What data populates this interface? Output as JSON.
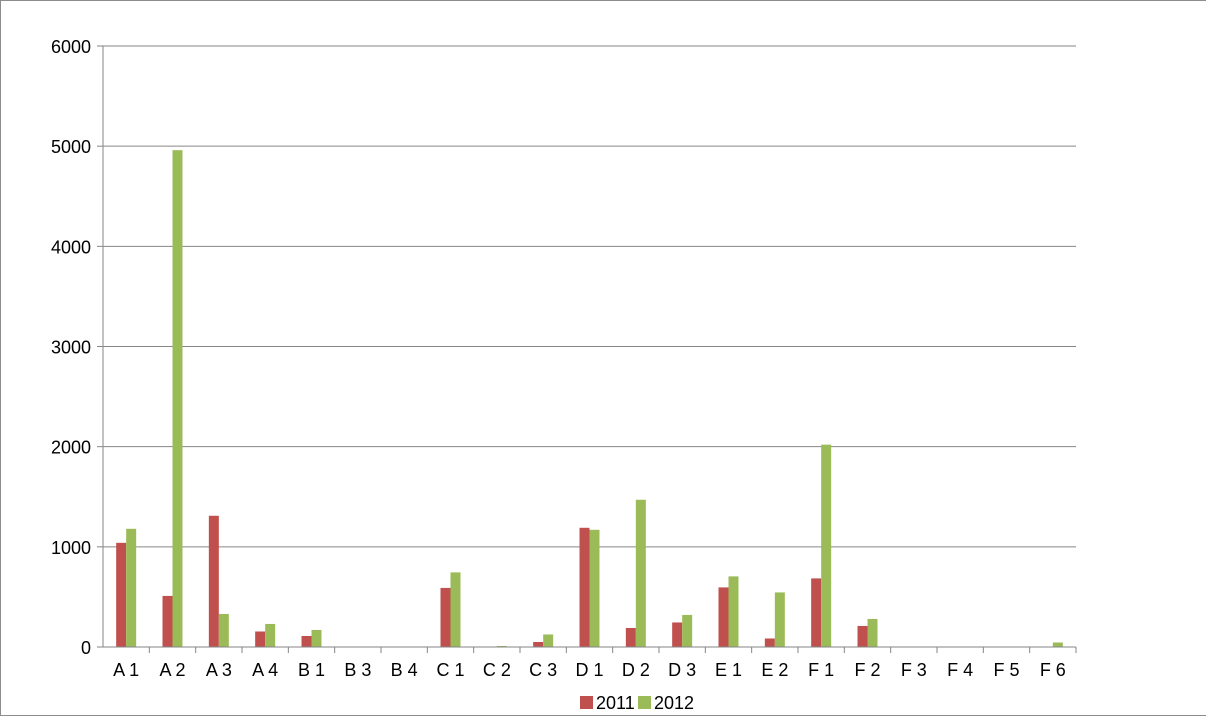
{
  "chart_data": {
    "type": "bar",
    "title": "",
    "xlabel": "",
    "ylabel": "",
    "categories": [
      "A 1",
      "A 2",
      "A 3",
      "A 4",
      "B 1",
      "B 3",
      "B 4",
      "C 1",
      "C 2",
      "C 3",
      "D 1",
      "D 2",
      "D 3",
      "E 1",
      "E 2",
      "F 1",
      "F 2",
      "F 3",
      "F 4",
      "F 5",
      "F 6"
    ],
    "series": [
      {
        "name": "2011",
        "color": "#c0504d",
        "values": [
          1040,
          510,
          1310,
          155,
          110,
          0,
          0,
          590,
          0,
          50,
          1190,
          190,
          245,
          595,
          85,
          685,
          210,
          0,
          0,
          0,
          0
        ]
      },
      {
        "name": "2012",
        "color": "#9bbb59",
        "values": [
          1180,
          4960,
          330,
          230,
          170,
          0,
          0,
          745,
          10,
          125,
          1170,
          1470,
          320,
          705,
          545,
          2020,
          280,
          0,
          0,
          0,
          45
        ]
      }
    ],
    "ylim": [
      0,
      6000
    ],
    "yticks": [
      0,
      1000,
      2000,
      3000,
      4000,
      5000,
      6000
    ],
    "grid": true,
    "legend_position": "bottom"
  }
}
